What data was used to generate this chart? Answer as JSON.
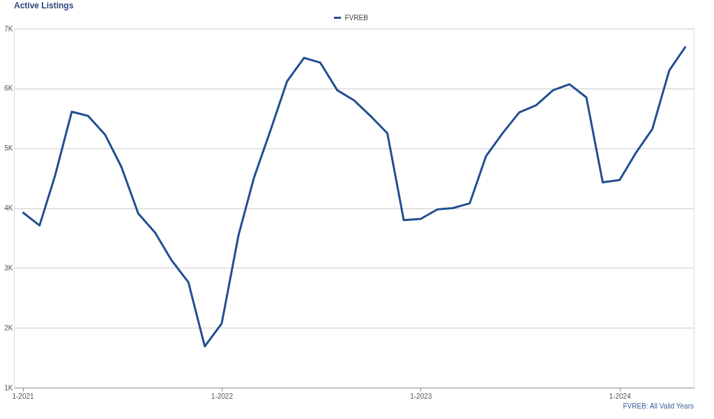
{
  "chart_data": {
    "type": "line",
    "title": "Active Listings",
    "x": [
      "2021-01",
      "2021-02",
      "2021-03",
      "2021-04",
      "2021-05",
      "2021-06",
      "2021-07",
      "2021-08",
      "2021-09",
      "2021-10",
      "2021-11",
      "2021-12",
      "2022-01",
      "2022-02",
      "2022-03",
      "2022-04",
      "2022-05",
      "2022-06",
      "2022-07",
      "2022-08",
      "2022-09",
      "2022-10",
      "2022-11",
      "2022-12",
      "2023-01",
      "2023-02",
      "2023-03",
      "2023-04",
      "2023-05",
      "2023-06",
      "2023-07",
      "2023-08",
      "2023-09",
      "2023-10",
      "2023-11",
      "2023-12",
      "2024-01",
      "2024-02",
      "2024-03",
      "2024-04",
      "2024-05"
    ],
    "series": [
      {
        "name": "FVREB",
        "color": "#234e91",
        "values": [
          3930,
          3710,
          4530,
          5610,
          5540,
          5230,
          4690,
          3910,
          3590,
          3130,
          2760,
          1690,
          2070,
          3550,
          4500,
          5310,
          6120,
          6510,
          6430,
          5970,
          5800,
          5540,
          5250,
          3800,
          3820,
          3980,
          4000,
          4080,
          4870,
          5260,
          5600,
          5720,
          5970,
          6070,
          5850,
          4430,
          4470,
          4940,
          5320,
          6300,
          6700
        ]
      }
    ],
    "xlim": [
      "2020-12-16",
      "2024-05-16"
    ],
    "xticks": [
      {
        "value": "2021-01",
        "label": "1-2021"
      },
      {
        "value": "2022-01",
        "label": "1-2022"
      },
      {
        "value": "2023-01",
        "label": "1-2023"
      },
      {
        "value": "2024-01",
        "label": "1-2024"
      }
    ],
    "ylim": [
      1000,
      7000
    ],
    "yticks": [
      {
        "value": 1000,
        "label": "1K"
      },
      {
        "value": 2000,
        "label": "2K"
      },
      {
        "value": 3000,
        "label": "3K"
      },
      {
        "value": 4000,
        "label": "4K"
      },
      {
        "value": 5000,
        "label": "5K"
      },
      {
        "value": 6000,
        "label": "6K"
      },
      {
        "value": 7000,
        "label": "7K"
      }
    ],
    "grid": "y",
    "legend": "top",
    "marker": "none",
    "line_style": "solid",
    "annotations": [
      "FVREB: All Valid Years"
    ]
  }
}
